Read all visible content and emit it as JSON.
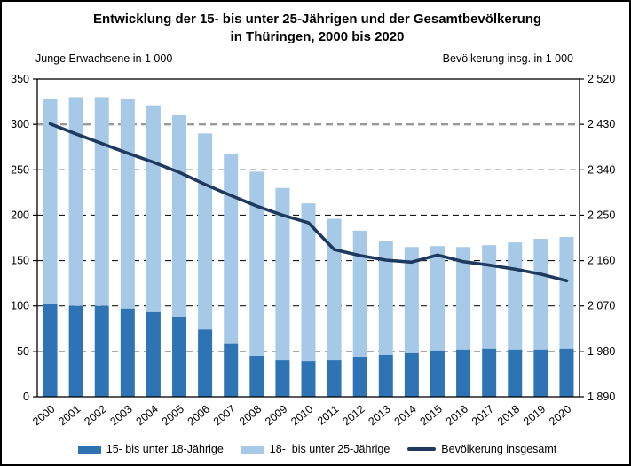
{
  "page": {
    "title_line1": "Entwicklung der 15- bis unter 25-Jährigen und der Gesamtbevölkerung",
    "title_line2": "in Thüringen, 2000 bis 2020"
  },
  "colors": {
    "bar_dark_blue": "#2E74B5",
    "bar_light_blue": "#A6C9E8",
    "line_navy": "#1F3A5E",
    "grid_black": "#1a1a1a",
    "grid_gray_highlight": "#9a9a9a",
    "axis_black": "#000000"
  },
  "chart_data": {
    "type": "bar",
    "subtype": "stacked-bars-with-secondary-axis-line",
    "title": "Entwicklung der 15- bis unter 25-Jährigen und der Gesamtbevölkerung in Thüringen, 2000 bis 2020",
    "categories": [
      2000,
      2001,
      2002,
      2003,
      2004,
      2005,
      2006,
      2007,
      2008,
      2009,
      2010,
      2011,
      2012,
      2013,
      2014,
      2015,
      2016,
      2017,
      2018,
      2019,
      2020
    ],
    "series": [
      {
        "name": "15- bis unter 18-Jährige",
        "type": "bar",
        "stack": "youth",
        "axis": "left",
        "color": "#2E74B5",
        "values": [
          102,
          100,
          100,
          97,
          94,
          88,
          74,
          59,
          45,
          40,
          39,
          40,
          44,
          46,
          48,
          51,
          52,
          53,
          52,
          52,
          53
        ]
      },
      {
        "name": "18-  bis unter 25-Jährige",
        "type": "bar",
        "stack": "youth",
        "axis": "left",
        "color": "#A6C9E8",
        "values": [
          226,
          230,
          230,
          231,
          227,
          222,
          216,
          209,
          203,
          190,
          174,
          156,
          139,
          126,
          117,
          115,
          113,
          114,
          118,
          122,
          123
        ]
      },
      {
        "name": "Bevölkerung insgesamt",
        "type": "line",
        "axis": "right",
        "color": "#1F3A5E",
        "values": [
          2431,
          2411,
          2392,
          2373,
          2355,
          2335,
          2311,
          2289,
          2268,
          2250,
          2235,
          2182,
          2170,
          2161,
          2157,
          2171,
          2158,
          2151,
          2143,
          2133,
          2120
        ]
      }
    ],
    "stack_totals": [
      328,
      330,
      330,
      328,
      321,
      310,
      290,
      268,
      248,
      230,
      213,
      196,
      183,
      172,
      165,
      166,
      165,
      167,
      170,
      174,
      176
    ],
    "left_axis": {
      "label": "Junge Erwachsene in 1 000",
      "min": 0,
      "max": 350,
      "tick_step": 50,
      "tick_labels_bottom_up": [
        "0",
        "50",
        "100",
        "150",
        "200",
        "250",
        "300",
        "350"
      ]
    },
    "right_axis": {
      "label": "Bevölkerung insg. in 1 000",
      "min": 1890,
      "max": 2520,
      "tick_step": 90,
      "tick_labels_bottom_up": [
        "1 890",
        "1 980",
        "2 070",
        "2 160",
        "2 250",
        "2 340",
        "2 430",
        "2 520"
      ]
    },
    "grid": {
      "style": "dashed",
      "highlight_left_value": 300
    },
    "legend_position": "bottom"
  }
}
